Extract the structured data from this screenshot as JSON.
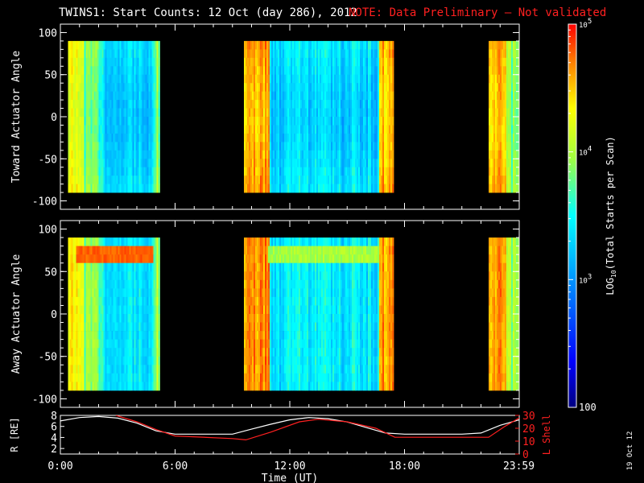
{
  "header": {
    "title": "TWINS1: Start Counts: 12 Oct (day 286), 2012",
    "note": "NOTE: Data Preliminary – Not validated",
    "note_color": "#ff2020"
  },
  "footer": {
    "date_stamp": "19 Oct 12"
  },
  "chart_data": [
    {
      "type": "heatmap",
      "name": "toward-panel",
      "ylabel": "Toward Actuator Angle",
      "ylim": [
        -110,
        110
      ],
      "yticks": [
        100,
        50,
        0,
        -50,
        -100
      ],
      "data_extent": [
        -90,
        90
      ],
      "xlim_hours": [
        0,
        24
      ],
      "coverage_hours": [
        [
          0.4,
          5.2
        ],
        [
          9.6,
          17.4
        ],
        [
          22.4,
          24
        ]
      ]
    },
    {
      "type": "heatmap",
      "name": "away-panel",
      "ylabel": "Away Actuator Angle",
      "ylim": [
        -110,
        110
      ],
      "yticks": [
        100,
        50,
        0,
        -50,
        -100
      ],
      "data_extent": [
        -90,
        90
      ],
      "xlim_hours": [
        0,
        24
      ],
      "coverage_hours": [
        [
          0.4,
          5.2
        ],
        [
          9.6,
          17.4
        ],
        [
          22.4,
          24
        ]
      ]
    },
    {
      "type": "line",
      "name": "ephemeris-panel",
      "xlabel": "Time (UT)",
      "xticks": [
        "0:00",
        "6:00",
        "12:00",
        "18:00",
        "23:59"
      ],
      "xtick_hours": [
        0,
        6,
        12,
        18,
        23.98
      ],
      "ylabel_left": "R [RE]",
      "ylim_left": [
        1,
        8
      ],
      "yticks_left": [
        2,
        4,
        6,
        8
      ],
      "ylabel_right": "L Shell",
      "ylim_right": [
        0,
        30
      ],
      "yticks_right": [
        0,
        10,
        20,
        30
      ],
      "series": [
        {
          "axis": "left",
          "color": "#ffffff",
          "x": [
            0,
            1,
            2,
            3,
            4,
            5,
            6,
            7,
            8,
            9,
            10,
            11,
            12,
            13,
            14,
            15,
            16,
            17,
            18,
            19,
            20,
            21,
            22,
            23,
            24
          ],
          "y": [
            7.0,
            7.6,
            7.8,
            7.5,
            6.6,
            5.2,
            4.6,
            4.6,
            4.6,
            4.6,
            5.5,
            6.4,
            7.2,
            7.6,
            7.4,
            6.8,
            5.8,
            4.8,
            4.6,
            4.6,
            4.6,
            4.6,
            4.8,
            6.2,
            7.2
          ]
        },
        {
          "axis": "right",
          "color": "#ff2020",
          "x": [
            2.9,
            4.0,
            5.0,
            6.0,
            9.0,
            9.7,
            11.0,
            12.5,
            13.5,
            15.0,
            16.5,
            17.5,
            19.0,
            21.5,
            22.4,
            23.2,
            24
          ],
          "y": [
            30,
            25,
            19,
            14,
            12,
            11,
            17,
            25,
            27,
            25,
            20,
            13,
            13,
            13,
            13,
            21,
            28
          ]
        }
      ]
    }
  ],
  "colorbar": {
    "label": "LOG10(Total Starts per Scan)",
    "label_main": "LOG",
    "label_sub": "10",
    "label_rest": "(Total Starts per Scan)",
    "ticks": [
      {
        "value": 100,
        "text": "100",
        "base": "",
        "exp": ""
      },
      {
        "value": 1000,
        "text": "",
        "base": "10",
        "exp": "3"
      },
      {
        "value": 10000,
        "text": "",
        "base": "10",
        "exp": "4"
      },
      {
        "value": 100000,
        "text": "",
        "base": "10",
        "exp": "5"
      }
    ]
  }
}
